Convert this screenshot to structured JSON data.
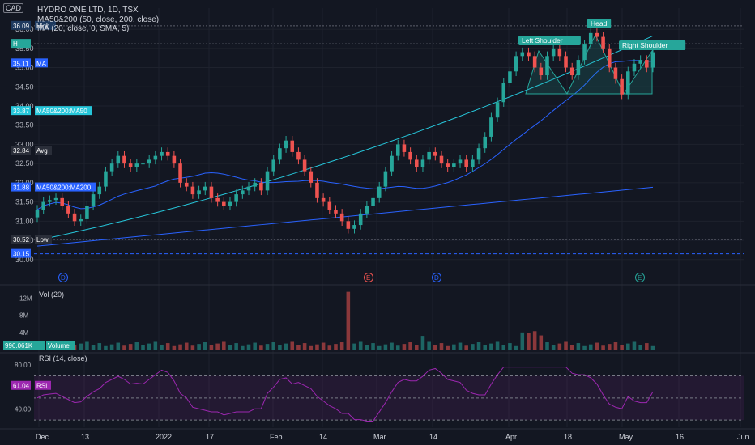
{
  "header": {
    "currency": "CAD",
    "symbol_line": "HYDRO ONE LTD, 1D, TSX",
    "indicator_1": "MA50&200 (50, close, 200, close)",
    "indicator_2": "MA (20, close, 0, SMA, 5)"
  },
  "colors": {
    "background": "#131722",
    "grid": "#1e222d",
    "up": "#26a69a",
    "down": "#ef5350",
    "ma20": "#2962ff",
    "ma50": "#26c6da",
    "ma200": "#2962ff",
    "rsi": "#9c27b0",
    "volume_label": "#26a69a",
    "pattern": "#26a69a"
  },
  "chart_data": [
    {
      "type": "candlestick",
      "title": "HYDRO ONE LTD, 1D, TSX",
      "y_ticks": [
        "36.00",
        "35.50",
        "35.00",
        "34.50",
        "34.00",
        "33.50",
        "33.00",
        "32.50",
        "32.00",
        "31.50",
        "31.00",
        "30.50",
        "30.00"
      ],
      "x_ticks": [
        "Dec",
        "13",
        "2022",
        "17",
        "Feb",
        "14",
        "Mar",
        "14",
        "Apr",
        "18",
        "May",
        "16",
        "Jun"
      ],
      "ylim": [
        29.7,
        36.55
      ],
      "price_tags": [
        {
          "value": 36.09,
          "label": "36.09",
          "name": "High",
          "color": "#1e3a5f"
        },
        {
          "value": 35.62,
          "label": "H",
          "name": "",
          "color": "#26a69a"
        },
        {
          "value": 35.11,
          "label": "35.11",
          "name": "MA",
          "color": "#2962ff"
        },
        {
          "value": 33.87,
          "label": "33.87",
          "name": "MA50&200:MA50",
          "color": "#26c6da"
        },
        {
          "value": 32.84,
          "label": "32.84",
          "name": "Avg",
          "color": "#2a2e39"
        },
        {
          "value": 31.88,
          "label": "31.88",
          "name": "MA50&200:MA200",
          "color": "#2962ff"
        },
        {
          "value": 30.52,
          "label": "30.52",
          "name": "Low",
          "color": "#2a2e39"
        },
        {
          "value": 30.15,
          "label": "30.15",
          "name": "",
          "color": "#2962ff"
        }
      ],
      "pattern_labels": [
        "Left Shoulder",
        "Head",
        "Right Shoulder"
      ],
      "event_markers": [
        "D",
        "E",
        "D",
        "E"
      ],
      "series": [
        {
          "name": "MA",
          "values": []
        },
        {
          "name": "MA50",
          "values": []
        },
        {
          "name": "MA200",
          "values": []
        }
      ],
      "close": [
        31.3,
        31.5,
        31.55,
        31.6,
        31.4,
        31.2,
        31.0,
        31.05,
        31.4,
        31.7,
        31.9,
        32.3,
        32.5,
        32.7,
        32.5,
        32.4,
        32.5,
        32.5,
        32.6,
        32.7,
        32.8,
        32.7,
        32.5,
        32.0,
        31.9,
        31.7,
        31.8,
        31.9,
        31.6,
        31.5,
        31.4,
        31.5,
        31.7,
        31.8,
        31.9,
        32.0,
        31.8,
        32.3,
        32.6,
        32.9,
        33.1,
        32.8,
        32.6,
        32.3,
        32.0,
        31.6,
        31.5,
        31.3,
        31.2,
        31.0,
        30.8,
        30.9,
        31.2,
        31.4,
        31.6,
        31.9,
        32.3,
        32.7,
        33.0,
        32.8,
        32.6,
        32.4,
        32.6,
        32.8,
        32.7,
        32.5,
        32.4,
        32.5,
        32.6,
        32.4,
        32.6,
        32.9,
        33.2,
        33.7,
        34.1,
        34.6,
        34.9,
        35.3,
        35.4,
        35.3,
        35.0,
        34.8,
        35.3,
        35.5,
        35.3,
        35.0,
        34.8,
        35.2,
        35.6,
        35.9,
        35.8,
        35.5,
        35.0,
        34.7,
        34.3,
        34.9,
        35.1,
        35.2,
        35.0,
        35.4
      ]
    },
    {
      "type": "bar",
      "title": "Vol (20)",
      "y_ticks": [
        "12M",
        "8M",
        "4M"
      ],
      "ylim": [
        0,
        14
      ],
      "current_label": "996.061K",
      "current_name": "Volume"
    },
    {
      "type": "line",
      "title": "RSI (14, close)",
      "y_ticks": [
        "80.00",
        "40.00"
      ],
      "ylim": [
        25,
        85
      ],
      "current_label": "61.04",
      "current_name": "RSI"
    }
  ]
}
